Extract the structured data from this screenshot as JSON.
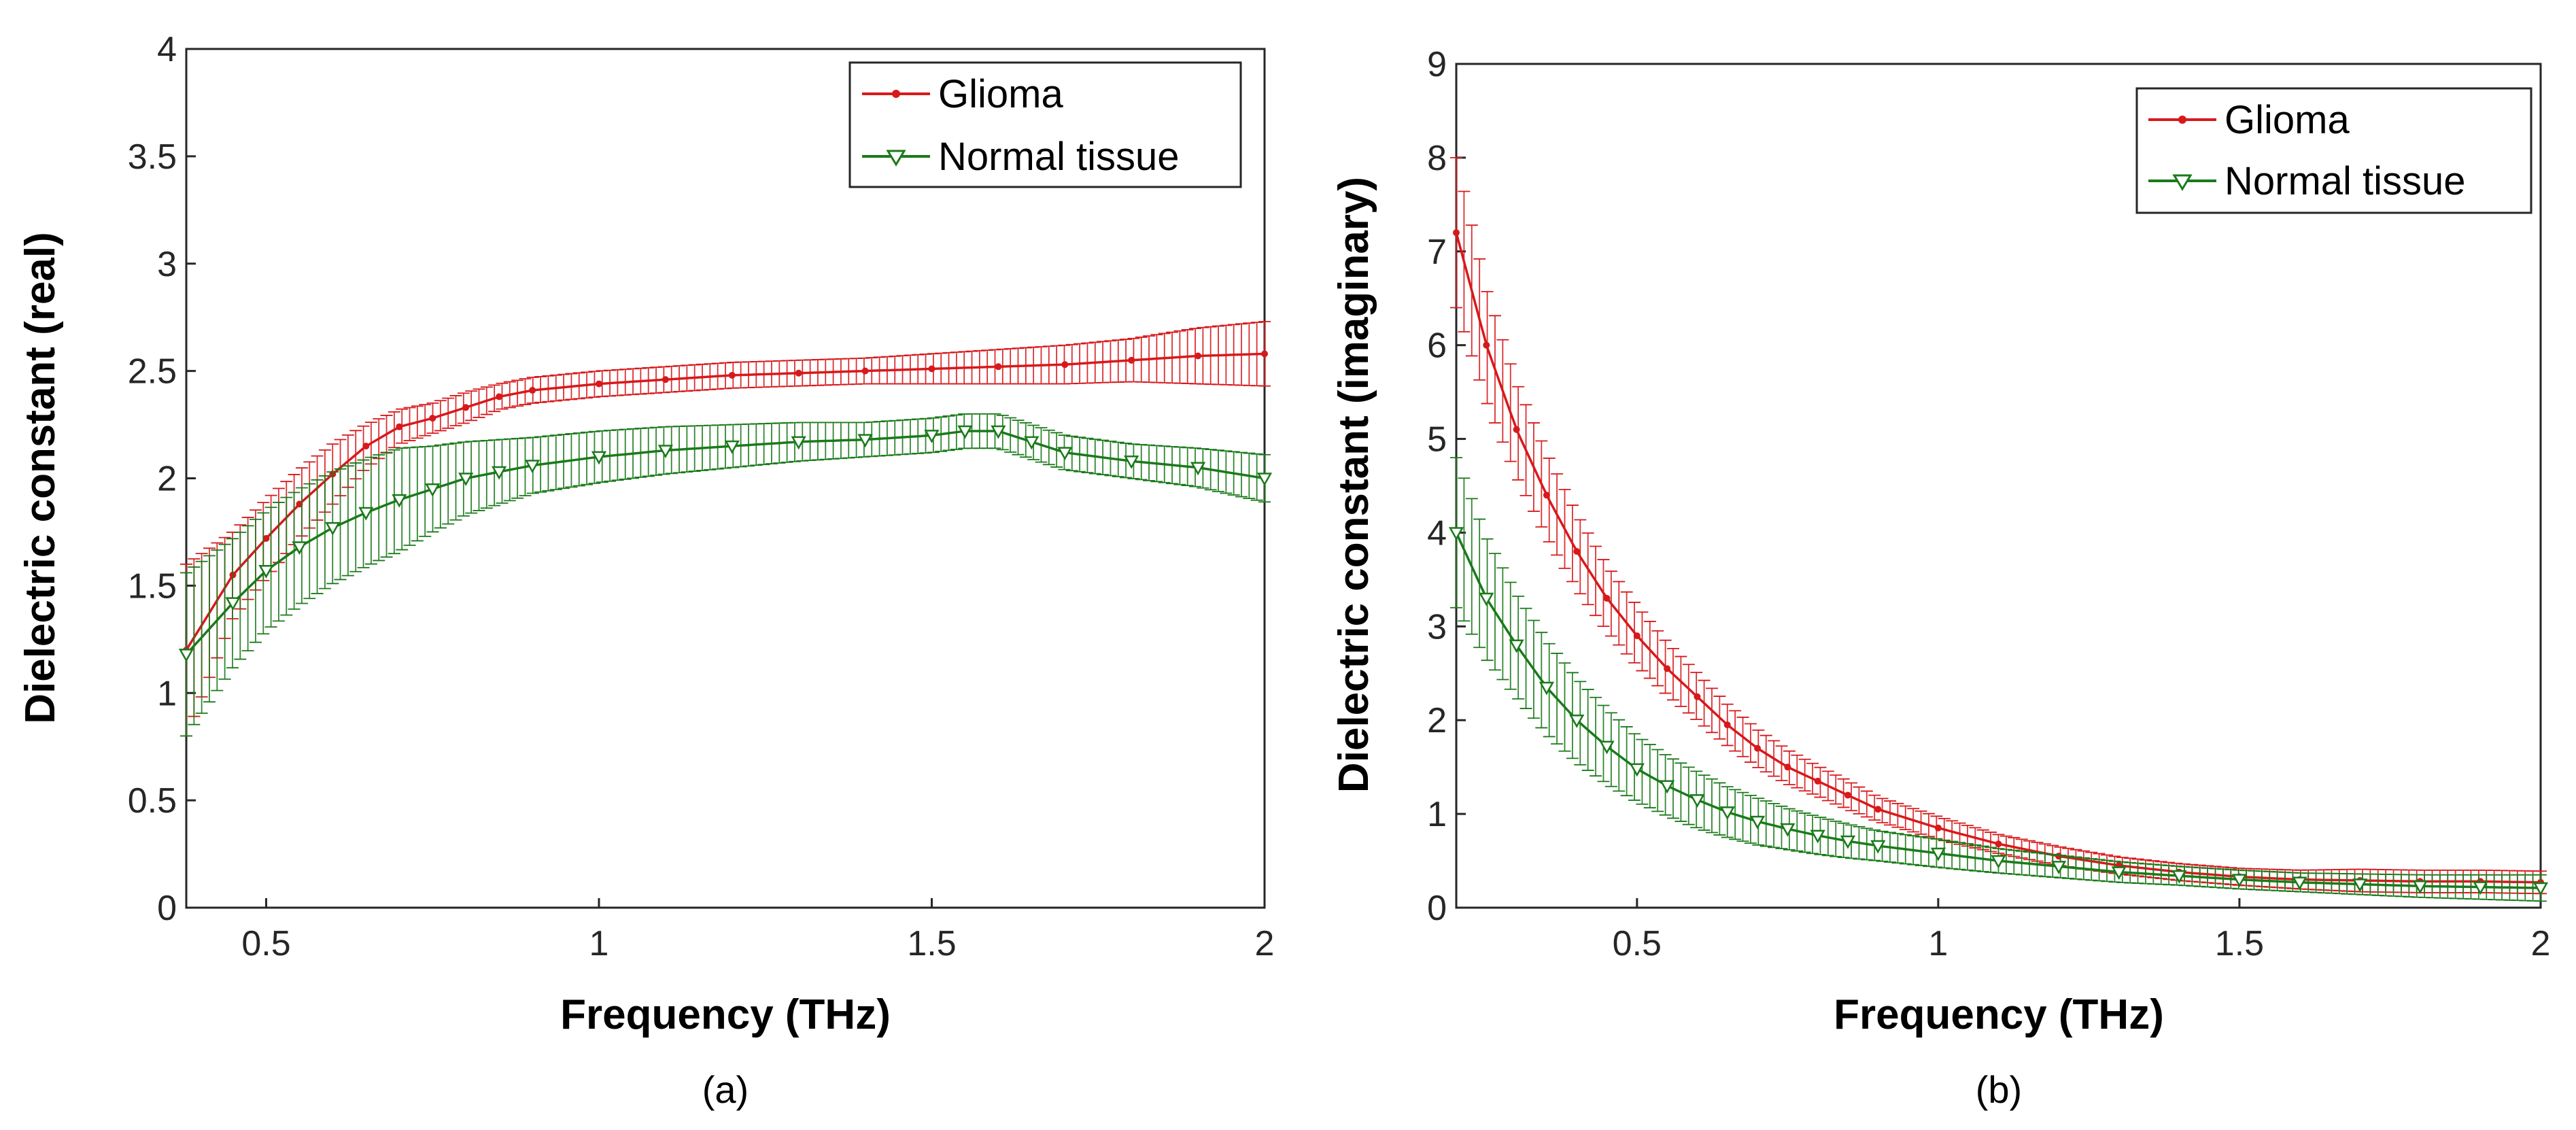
{
  "chart_data": [
    {
      "type": "line",
      "panel_label": "(a)",
      "xlabel": "Frequency (THz)",
      "ylabel": "Dielectric constant (real)",
      "xlim": [
        0.38,
        2.0
      ],
      "ylim": [
        0,
        4
      ],
      "xticks": [
        0.5,
        1,
        1.5,
        2
      ],
      "xtick_labels": [
        "0.5",
        "1",
        "1.5",
        "2"
      ],
      "yticks": [
        0,
        0.5,
        1,
        1.5,
        2,
        2.5,
        3,
        3.5,
        4
      ],
      "ytick_labels": [
        "0",
        "0.5",
        "1",
        "1.5",
        "2",
        "2.5",
        "3",
        "3.5",
        "4"
      ],
      "legend_position": "top-right",
      "legend": [
        "Glioma",
        "Normal tissue"
      ],
      "series": [
        {
          "name": "Glioma",
          "color": "#d7191c",
          "marker": "dot",
          "x": [
            0.38,
            0.45,
            0.5,
            0.55,
            0.6,
            0.65,
            0.7,
            0.75,
            0.8,
            0.85,
            0.9,
            1.0,
            1.1,
            1.2,
            1.3,
            1.4,
            1.5,
            1.6,
            1.7,
            1.8,
            1.9,
            2.0
          ],
          "y": [
            1.2,
            1.55,
            1.72,
            1.88,
            2.02,
            2.15,
            2.24,
            2.28,
            2.33,
            2.38,
            2.41,
            2.44,
            2.46,
            2.48,
            2.49,
            2.5,
            2.51,
            2.52,
            2.53,
            2.55,
            2.57,
            2.58
          ],
          "err": [
            0.4,
            0.2,
            0.18,
            0.16,
            0.14,
            0.1,
            0.08,
            0.07,
            0.07,
            0.06,
            0.06,
            0.06,
            0.06,
            0.06,
            0.06,
            0.06,
            0.07,
            0.08,
            0.09,
            0.1,
            0.13,
            0.15
          ]
        },
        {
          "name": "Normal tissue",
          "color": "#1a7a1a",
          "marker": "triangle-down",
          "x": [
            0.38,
            0.45,
            0.5,
            0.55,
            0.6,
            0.65,
            0.7,
            0.75,
            0.8,
            0.85,
            0.9,
            1.0,
            1.1,
            1.2,
            1.3,
            1.4,
            1.5,
            1.55,
            1.6,
            1.65,
            1.7,
            1.8,
            1.9,
            2.0
          ],
          "y": [
            1.18,
            1.42,
            1.57,
            1.68,
            1.77,
            1.84,
            1.9,
            1.95,
            2.0,
            2.03,
            2.06,
            2.1,
            2.13,
            2.15,
            2.17,
            2.18,
            2.2,
            2.22,
            2.22,
            2.17,
            2.12,
            2.08,
            2.05,
            2.0
          ],
          "err": [
            0.38,
            0.3,
            0.28,
            0.27,
            0.26,
            0.25,
            0.24,
            0.2,
            0.17,
            0.15,
            0.13,
            0.12,
            0.11,
            0.1,
            0.09,
            0.08,
            0.08,
            0.08,
            0.08,
            0.08,
            0.08,
            0.08,
            0.09,
            0.11
          ]
        }
      ]
    },
    {
      "type": "line",
      "panel_label": "(b)",
      "xlabel": "Frequency (THz)",
      "ylabel": "Dielectric constant (imaginary)",
      "xlim": [
        0.2,
        2.0
      ],
      "ylim": [
        0,
        9
      ],
      "xticks": [
        0.5,
        1,
        1.5,
        2
      ],
      "xtick_labels": [
        "0.5",
        "1",
        "1.5",
        "2"
      ],
      "yticks": [
        0,
        1,
        2,
        3,
        4,
        5,
        6,
        7,
        8,
        9
      ],
      "ytick_labels": [
        "0",
        "1",
        "2",
        "3",
        "4",
        "5",
        "6",
        "7",
        "8",
        "9"
      ],
      "legend_position": "top-right",
      "legend": [
        "Glioma",
        "Normal tissue"
      ],
      "series": [
        {
          "name": "Glioma",
          "color": "#d7191c",
          "marker": "dot",
          "x": [
            0.2,
            0.25,
            0.3,
            0.35,
            0.4,
            0.45,
            0.5,
            0.55,
            0.6,
            0.65,
            0.7,
            0.75,
            0.8,
            0.85,
            0.9,
            1.0,
            1.1,
            1.2,
            1.3,
            1.4,
            1.5,
            1.6,
            1.7,
            1.8,
            1.9,
            2.0
          ],
          "y": [
            7.2,
            6.0,
            5.1,
            4.4,
            3.8,
            3.3,
            2.9,
            2.55,
            2.25,
            1.95,
            1.7,
            1.5,
            1.35,
            1.2,
            1.05,
            0.85,
            0.68,
            0.55,
            0.45,
            0.38,
            0.33,
            0.3,
            0.29,
            0.28,
            0.28,
            0.27
          ],
          "err": [
            0.8,
            0.6,
            0.5,
            0.45,
            0.4,
            0.35,
            0.32,
            0.28,
            0.25,
            0.22,
            0.2,
            0.18,
            0.16,
            0.15,
            0.13,
            0.12,
            0.1,
            0.1,
            0.09,
            0.09,
            0.09,
            0.1,
            0.12,
            0.12,
            0.12,
            0.12
          ]
        },
        {
          "name": "Normal tissue",
          "color": "#1a7a1a",
          "marker": "triangle-down",
          "x": [
            0.2,
            0.25,
            0.3,
            0.35,
            0.4,
            0.45,
            0.5,
            0.55,
            0.6,
            0.65,
            0.7,
            0.75,
            0.8,
            0.85,
            0.9,
            1.0,
            1.1,
            1.2,
            1.3,
            1.4,
            1.5,
            1.6,
            1.7,
            1.8,
            1.9,
            2.0
          ],
          "y": [
            4.0,
            3.3,
            2.8,
            2.35,
            2.0,
            1.72,
            1.48,
            1.3,
            1.15,
            1.02,
            0.92,
            0.84,
            0.77,
            0.71,
            0.66,
            0.58,
            0.5,
            0.44,
            0.38,
            0.34,
            0.3,
            0.27,
            0.25,
            0.23,
            0.22,
            0.21
          ],
          "err": [
            0.8,
            0.65,
            0.55,
            0.5,
            0.45,
            0.4,
            0.35,
            0.32,
            0.3,
            0.27,
            0.25,
            0.22,
            0.2,
            0.18,
            0.16,
            0.15,
            0.13,
            0.12,
            0.11,
            0.1,
            0.1,
            0.1,
            0.11,
            0.12,
            0.13,
            0.14
          ]
        }
      ]
    }
  ]
}
